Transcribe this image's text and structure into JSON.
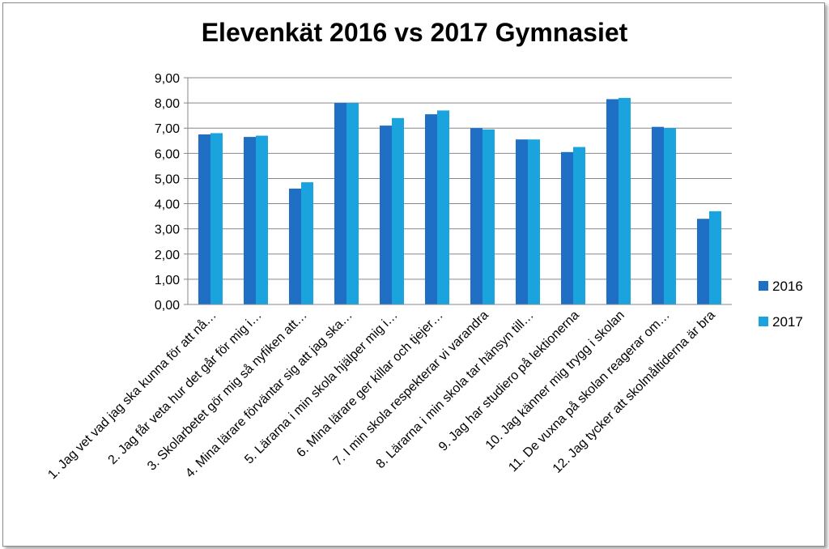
{
  "colors": {
    "s2016": "#1f6fc5",
    "s2017": "#1aa3dc",
    "grid": "#878787"
  },
  "chart_data": {
    "type": "bar",
    "title": "Elevenkät 2016 vs 2017 Gymnasiet",
    "xlabel": "",
    "ylabel": "",
    "ylim": [
      0,
      9
    ],
    "grid": true,
    "legend": "right",
    "yticks": [
      "0,00",
      "1,00",
      "2,00",
      "3,00",
      "4,00",
      "5,00",
      "6,00",
      "7,00",
      "8,00",
      "9,00"
    ],
    "categories": [
      "1. Jag vet vad jag ska kunna för att nå…",
      "2. Jag får veta hur det går för mig i…",
      "3. Skolarbetet gör mig så nyfiken att…",
      "4. Mina lärare förväntar sig att jag ska…",
      "5. Lärarna i min skola hjälper mig i…",
      "6. Mina lärare ger killar och tjejer…",
      "7. I min skola respekterar vi varandra",
      "8. Lärarna i min skola tar hänsyn till…",
      "9. Jag har studiero på lektionerna",
      "10. Jag känner mig trygg i skolan",
      "11. De vuxna på skolan reagerar om…",
      "12. Jag tycker att skolmåltiderna är bra"
    ],
    "series": [
      {
        "name": "2016",
        "values": [
          6.75,
          6.65,
          4.6,
          8.0,
          7.1,
          7.55,
          7.0,
          6.55,
          6.05,
          8.15,
          7.05,
          3.4
        ]
      },
      {
        "name": "2017",
        "values": [
          6.8,
          6.7,
          4.85,
          8.0,
          7.4,
          7.7,
          6.95,
          6.55,
          6.25,
          8.2,
          7.0,
          3.7
        ]
      }
    ]
  }
}
